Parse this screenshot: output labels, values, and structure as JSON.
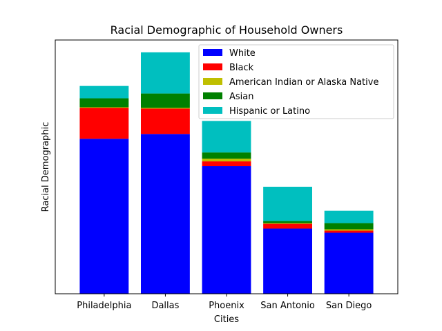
{
  "chart_data": {
    "type": "bar",
    "stacked": true,
    "title": "Racial Demographic of Household Owners",
    "xlabel": "Cities",
    "ylabel": "Racial Demographic",
    "ylim": [
      0,
      370
    ],
    "y_ticks_shown": false,
    "legend_position": "top-right",
    "categories": [
      "Philadelphia",
      "Dallas",
      "Phoenix",
      "San Antonio",
      "San Diego"
    ],
    "series": [
      {
        "name": "White",
        "color": "#0000ff",
        "values": [
          226,
          233,
          186,
          95,
          89
        ]
      },
      {
        "name": "Black",
        "color": "#ff0000",
        "values": [
          45,
          37,
          7,
          7,
          3
        ]
      },
      {
        "name": "American Indian or Alaska Native",
        "color": "#bfbf00",
        "values": [
          1,
          1,
          4,
          1,
          2
        ]
      },
      {
        "name": "Asian",
        "color": "#008000",
        "values": [
          13,
          21,
          9,
          3,
          9
        ]
      },
      {
        "name": "Hispanic or Latino",
        "color": "#00bfbf",
        "values": [
          18,
          60,
          46,
          50,
          18
        ]
      }
    ]
  }
}
